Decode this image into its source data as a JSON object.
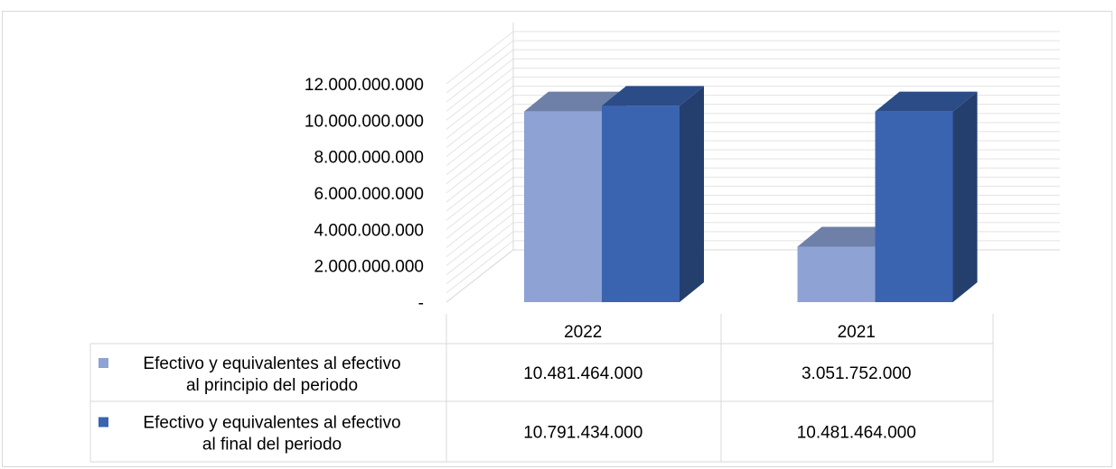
{
  "chart_data": {
    "type": "bar",
    "categories": [
      "2022",
      "2021"
    ],
    "series": [
      {
        "name": "Efectivo y equivalentes al efectivo al principio del periodo",
        "name_lines": [
          "Efectivo y equivalentes al efectivo",
          "al principio del periodo"
        ],
        "values": [
          10481464000,
          3051752000
        ],
        "labels": [
          "10.481.464.000",
          "3.051.752.000"
        ],
        "color": "#8FA2D4",
        "color_top": "#6E7FA8",
        "color_side": "#5B6B93"
      },
      {
        "name": "Efectivo y equivalentes al efectivo al final del periodo",
        "name_lines": [
          "Efectivo y equivalentes al efectivo",
          "al final del periodo"
        ],
        "values": [
          10791434000,
          10481464000
        ],
        "labels": [
          "10.791.434.000",
          "10.481.464.000"
        ],
        "color": "#3A64AF",
        "color_top": "#2C4C87",
        "color_side": "#243F6E"
      }
    ],
    "ylim": [
      0,
      12000000000
    ],
    "yticks": [
      {
        "value": 0,
        "label": "-"
      },
      {
        "value": 2000000000,
        "label": "2.000.000.000"
      },
      {
        "value": 4000000000,
        "label": "4.000.000.000"
      },
      {
        "value": 6000000000,
        "label": "6.000.000.000"
      },
      {
        "value": 8000000000,
        "label": "8.000.000.000"
      },
      {
        "value": 10000000000,
        "label": "10.000.000.000"
      },
      {
        "value": 12000000000,
        "label": "12.000.000.000"
      }
    ],
    "grid": true,
    "three_d": true,
    "data_table": true,
    "legend": "data-table"
  }
}
